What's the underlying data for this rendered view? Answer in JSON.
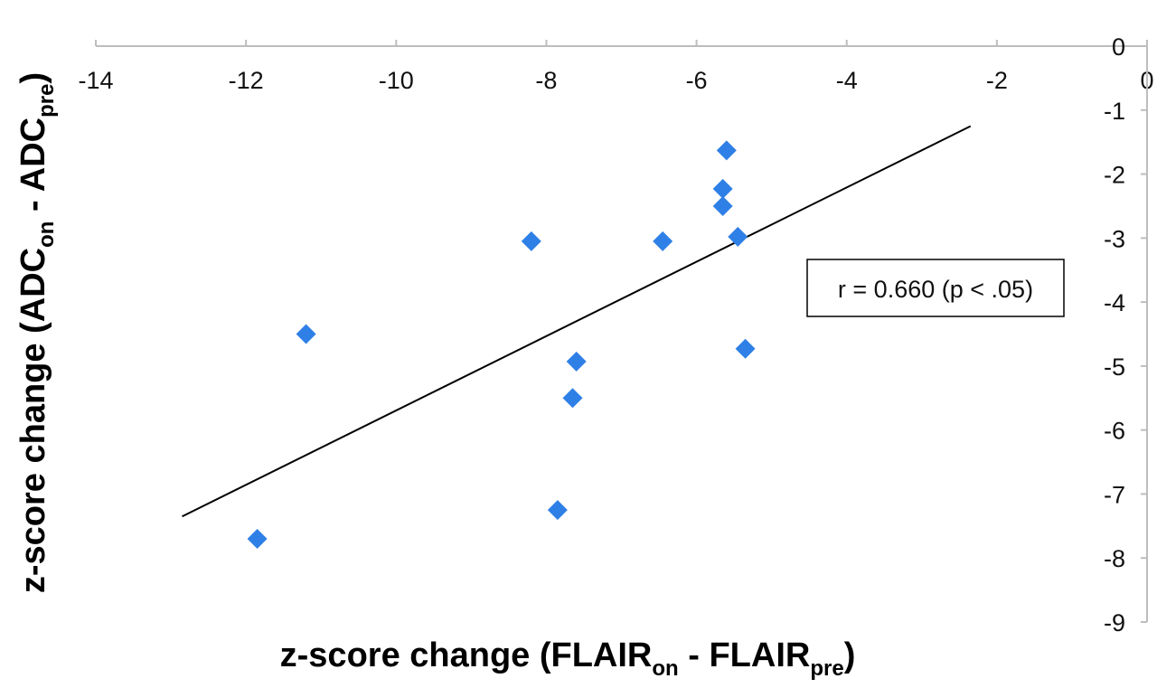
{
  "chart_data": {
    "type": "scatter",
    "title": "",
    "xlabel": {
      "parts": [
        {
          "text": "z-score change (FLAIR",
          "sub": false
        },
        {
          "text": "on",
          "sub": true
        },
        {
          "text": " - FLAIR",
          "sub": false
        },
        {
          "text": "pre",
          "sub": true
        },
        {
          "text": ")",
          "sub": false
        }
      ]
    },
    "ylabel": {
      "parts": [
        {
          "text": "z-score change (ADC",
          "sub": false
        },
        {
          "text": "on",
          "sub": true
        },
        {
          "text": " - ADC",
          "sub": false
        },
        {
          "text": "pre",
          "sub": true
        },
        {
          "text": ")",
          "sub": false
        }
      ]
    },
    "xlim": [
      -14,
      0
    ],
    "ylim": [
      -9,
      0
    ],
    "x_ticks": [
      -14,
      -12,
      -10,
      -8,
      -6,
      -4,
      -2,
      0
    ],
    "y_ticks": [
      0,
      -1,
      -2,
      -3,
      -4,
      -5,
      -6,
      -7,
      -8,
      -9
    ],
    "x_axis_position": "top",
    "y_axis_position": "right",
    "grid": false,
    "points": [
      {
        "x": -11.85,
        "y": -7.7
      },
      {
        "x": -11.2,
        "y": -4.5
      },
      {
        "x": -8.2,
        "y": -3.05
      },
      {
        "x": -7.85,
        "y": -7.25
      },
      {
        "x": -7.6,
        "y": -4.93
      },
      {
        "x": -7.65,
        "y": -5.5
      },
      {
        "x": -6.45,
        "y": -3.05
      },
      {
        "x": -5.6,
        "y": -1.63
      },
      {
        "x": -5.65,
        "y": -2.23
      },
      {
        "x": -5.65,
        "y": -2.5
      },
      {
        "x": -5.45,
        "y": -2.98
      },
      {
        "x": -5.35,
        "y": -4.73
      }
    ],
    "trendline": {
      "x1": -12.85,
      "y1": -7.35,
      "x2": -2.35,
      "y2": -1.25
    },
    "annotation": "r = 0.660 (p < .05)",
    "marker": "diamond",
    "colors": {
      "marker": "#2f80e6",
      "trendline": "#000000",
      "axis": "#bdbdbd",
      "text": "#111111"
    }
  }
}
